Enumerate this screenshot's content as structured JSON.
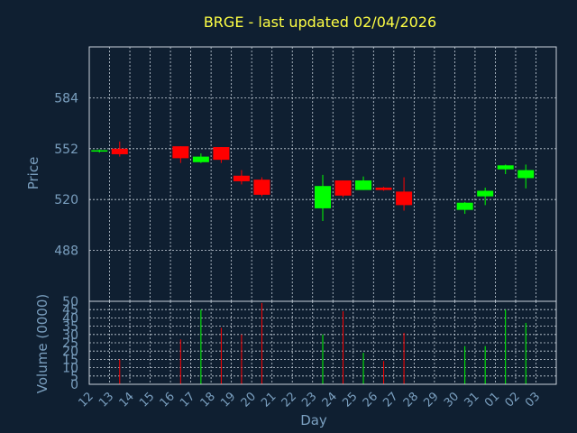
{
  "chart_data": {
    "type": "candlestick",
    "title": "BRGE - last updated 02/04/2026",
    "xlabel": "Day",
    "price_panel": {
      "ylabel": "Price",
      "yticks": [
        488,
        520,
        552,
        584
      ],
      "ylim": [
        456,
        616
      ],
      "grid": true
    },
    "volume_panel": {
      "ylabel": "Volume (0000)",
      "yticks": [
        0,
        5,
        10,
        15,
        20,
        25,
        30,
        35,
        40,
        45,
        50
      ],
      "ylim": [
        0,
        50
      ],
      "grid": true
    },
    "x_tick_labels": [
      "12",
      "13",
      "14",
      "15",
      "16",
      "17",
      "18",
      "19",
      "20",
      "21",
      "22",
      "23",
      "24",
      "25",
      "26",
      "27",
      "28",
      "29",
      "30",
      "31",
      "01",
      "02",
      "03"
    ],
    "colors": {
      "up": "#00ff00",
      "down": "#ff0000",
      "title": "#ffff44",
      "axis_text": "#7a9fbf",
      "background": "#0f1f31"
    },
    "candles": [
      {
        "day": "12",
        "open": 550.5,
        "high": 551.5,
        "low": 549.5,
        "close": 551.0,
        "volume": 0
      },
      {
        "day": "13",
        "open": 552.0,
        "high": 556.5,
        "low": 547.0,
        "close": 548.5,
        "volume": 15
      },
      {
        "day": "16",
        "open": 553.5,
        "high": 553.5,
        "low": 543.0,
        "close": 546.0,
        "volume": 27
      },
      {
        "day": "17",
        "open": 543.5,
        "high": 549.0,
        "low": 543.0,
        "close": 547.0,
        "volume": 45
      },
      {
        "day": "18",
        "open": 553.0,
        "high": 553.0,
        "low": 543.0,
        "close": 545.0,
        "volume": 34
      },
      {
        "day": "19",
        "open": 535.0,
        "high": 538.5,
        "low": 529.5,
        "close": 531.5,
        "volume": 30
      },
      {
        "day": "20",
        "open": 532.5,
        "high": 534.0,
        "low": 522.0,
        "close": 523.0,
        "volume": 49
      },
      {
        "day": "23",
        "open": 514.5,
        "high": 535.5,
        "low": 506.5,
        "close": 528.5,
        "volume": 30
      },
      {
        "day": "24",
        "open": 532.0,
        "high": 532.0,
        "low": 521.5,
        "close": 522.5,
        "volume": 44
      },
      {
        "day": "25",
        "open": 526.0,
        "high": 534.5,
        "low": 526.0,
        "close": 532.0,
        "volume": 19
      },
      {
        "day": "26",
        "open": 527.5,
        "high": 528.0,
        "low": 525.5,
        "close": 526.0,
        "volume": 14
      },
      {
        "day": "27",
        "open": 525.0,
        "high": 534.0,
        "low": 513.0,
        "close": 516.5,
        "volume": 31
      },
      {
        "day": "30",
        "open": 513.5,
        "high": 518.5,
        "low": 511.0,
        "close": 518.0,
        "volume": 23
      },
      {
        "day": "31",
        "open": 522.0,
        "high": 527.5,
        "low": 516.5,
        "close": 525.5,
        "volume": 23
      },
      {
        "day": "01",
        "open": 539.0,
        "high": 542.0,
        "low": 536.0,
        "close": 541.5,
        "volume": 45
      },
      {
        "day": "02",
        "open": 533.5,
        "high": 542.0,
        "low": 527.0,
        "close": 538.5,
        "volume": 37
      }
    ]
  }
}
